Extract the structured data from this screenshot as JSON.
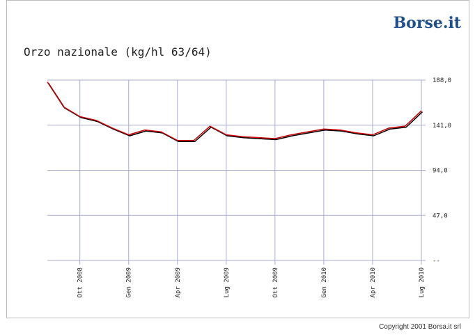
{
  "chart_data": {
    "type": "line",
    "logo": "Borse.it",
    "title": "Orzo nazionale (kg/hl 63/64)",
    "copyright": "Copyright 2001 Borsa.it srl",
    "x": [
      "2008-08",
      "2008-09",
      "2008-10",
      "2008-11",
      "2008-12",
      "2009-01",
      "2009-02",
      "2009-03",
      "2009-04",
      "2009-05",
      "2009-06",
      "2009-07",
      "2009-08",
      "2009-09",
      "2009-10",
      "2009-11",
      "2009-12",
      "2010-01",
      "2010-02",
      "2010-03",
      "2010-04",
      "2010-05",
      "2010-06",
      "2010-07"
    ],
    "values": [
      186,
      160,
      150,
      146,
      138,
      131,
      136,
      134,
      125,
      125,
      140,
      131,
      129,
      128,
      127,
      131,
      134,
      137,
      136,
      133,
      131,
      138,
      140,
      156
    ],
    "color": "#cc0000",
    "shadow_color": "#000000",
    "xlim": [
      "2008-08",
      "2010-07"
    ],
    "xticks": [
      {
        "value": "2008-10",
        "label": "Ott 2008"
      },
      {
        "value": "2009-01",
        "label": "Gen 2009"
      },
      {
        "value": "2009-04",
        "label": "Apr 2009"
      },
      {
        "value": "2009-07",
        "label": "Lug 2009"
      },
      {
        "value": "2009-10",
        "label": "Ott 2009"
      },
      {
        "value": "2010-01",
        "label": "Gen 2010"
      },
      {
        "value": "2010-04",
        "label": "Apr 2010"
      },
      {
        "value": "2010-07",
        "label": "Lug 2010"
      }
    ],
    "ylim": [
      0,
      188
    ],
    "yticks": [
      {
        "value": 188,
        "label": "188,0"
      },
      {
        "value": 141,
        "label": "141,0"
      },
      {
        "value": 94,
        "label": "94,0"
      },
      {
        "value": 47,
        "label": "47,0"
      },
      {
        "value": 0,
        "label": "--"
      }
    ],
    "grid": true
  }
}
